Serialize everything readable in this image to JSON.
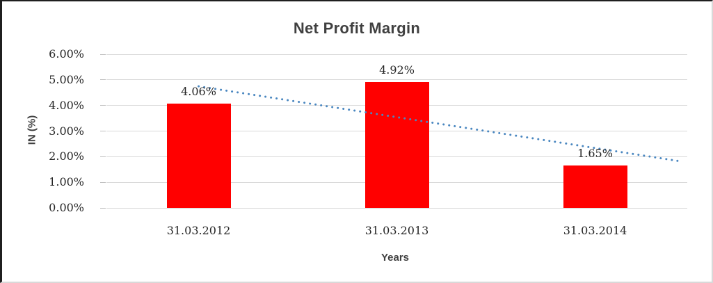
{
  "chart_data": {
    "type": "bar",
    "title": "Net Profit Margin",
    "xlabel": "Years",
    "ylabel": "IN (%)",
    "categories": [
      "31.03.2012",
      "31.03.2013",
      "31.03.2014"
    ],
    "values": [
      4.06,
      4.92,
      1.65
    ],
    "value_labels": [
      "4.06%",
      "4.92%",
      "1.65%"
    ],
    "ylim": [
      0,
      6
    ],
    "yticks": [
      0,
      1,
      2,
      3,
      4,
      5,
      6
    ],
    "ytick_labels": [
      "0.00%",
      "1.00%",
      "2.00%",
      "3.00%",
      "4.00%",
      "5.00%",
      "6.00%"
    ],
    "grid": true,
    "legend": "none",
    "colors": {
      "bar": "#ff0000",
      "trendline": "#4a87c0",
      "gridline": "#d9d9d9",
      "tick_text": "#262626",
      "title_text": "#404040"
    },
    "trendline": {
      "type": "linear",
      "style": "dotted"
    }
  }
}
